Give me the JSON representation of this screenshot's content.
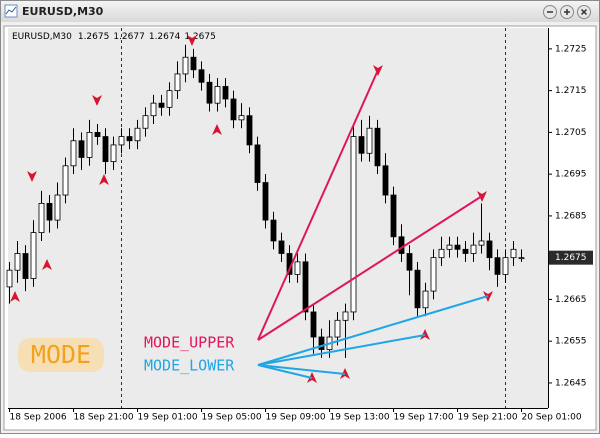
{
  "window": {
    "title": "EURUSD,M30"
  },
  "chart_data": {
    "type": "candlestick",
    "symbol": "EURUSD,M30",
    "categories": [
      "18 Sep 2006",
      null,
      null,
      null,
      null,
      null,
      null,
      null,
      "18 Sep 21:00",
      null,
      null,
      null,
      null,
      null,
      null,
      null,
      "19 Sep 01:00",
      null,
      null,
      null,
      null,
      null,
      null,
      null,
      "19 Sep 05:00",
      null,
      null,
      null,
      null,
      null,
      null,
      null,
      "19 Sep 09:00",
      null,
      null,
      null,
      null,
      null,
      null,
      null,
      "19 Sep 13:00",
      null,
      null,
      null,
      null,
      null,
      null,
      null,
      "19 Sep 17:00",
      null,
      null,
      null,
      null,
      null,
      null,
      null,
      "19 Sep 21:00",
      null,
      null,
      null,
      null,
      null,
      null,
      null,
      "20 Sep 01:00"
    ],
    "open": [
      1.2668,
      1.2672,
      1.2676,
      1.267,
      1.2681,
      1.2688,
      1.2684,
      1.269,
      1.2697,
      1.2703,
      1.2699,
      1.2705,
      1.2704,
      1.2698,
      1.2702,
      1.2704,
      1.2703,
      1.2706,
      1.2709,
      1.2712,
      1.2711,
      1.2715,
      1.2719,
      1.2723,
      1.272,
      1.2717,
      1.2712,
      1.2716,
      1.2713,
      1.2708,
      1.2709,
      1.2702,
      1.2693,
      1.2684,
      1.2679,
      1.2676,
      1.2671,
      1.2674,
      1.2662,
      1.2656,
      1.2653,
      1.2656,
      1.266,
      1.2662,
      1.2704,
      1.27,
      1.2706,
      1.2697,
      1.269,
      1.268,
      1.2676,
      1.2672,
      1.2663,
      1.2667,
      1.2675,
      1.2677,
      1.2678,
      1.2677,
      1.2676,
      1.2678,
      1.2679,
      1.2675,
      1.2671,
      1.2675,
      1.2675
    ],
    "high": [
      1.2674,
      1.2679,
      1.2678,
      1.2684,
      1.2691,
      1.269,
      1.2693,
      1.2699,
      1.2706,
      1.2705,
      1.2708,
      1.2707,
      1.2706,
      1.2704,
      1.2706,
      1.2706,
      1.2708,
      1.2711,
      1.2714,
      1.2714,
      1.2717,
      1.2722,
      1.2726,
      1.2725,
      1.2722,
      1.2719,
      1.2718,
      1.2718,
      1.2715,
      1.2712,
      1.2711,
      1.2704,
      1.2695,
      1.2686,
      1.2681,
      1.2678,
      1.2676,
      1.2676,
      1.2664,
      1.2658,
      1.266,
      1.2662,
      1.2664,
      1.2707,
      1.2708,
      1.2709,
      1.2708,
      1.27,
      1.2692,
      1.2683,
      1.2678,
      1.2674,
      1.2669,
      1.2677,
      1.268,
      1.268,
      1.268,
      1.2679,
      1.2681,
      1.2688,
      1.2681,
      1.2677,
      1.2677,
      1.2679,
      1.2677
    ],
    "low": [
      1.2664,
      1.2669,
      1.2667,
      1.2668,
      1.2679,
      1.2681,
      1.2682,
      1.2688,
      1.2695,
      1.2696,
      1.2697,
      1.2702,
      1.2695,
      1.2696,
      1.27,
      1.2701,
      1.2701,
      1.2704,
      1.2707,
      1.2709,
      1.2709,
      1.2713,
      1.2717,
      1.2718,
      1.2715,
      1.271,
      1.271,
      1.2711,
      1.2706,
      1.2706,
      1.27,
      1.2691,
      1.2682,
      1.2677,
      1.2674,
      1.2669,
      1.2669,
      1.266,
      1.2652,
      1.2651,
      1.2651,
      1.2654,
      1.2651,
      1.266,
      1.2698,
      1.2698,
      1.2695,
      1.2688,
      1.2678,
      1.2674,
      1.2666,
      1.2661,
      1.2661,
      1.2665,
      1.2673,
      1.2675,
      1.2675,
      1.2674,
      1.2674,
      1.2676,
      1.2672,
      1.2668,
      1.2669,
      1.2673,
      1.2674
    ],
    "close": [
      1.2672,
      1.2676,
      1.267,
      1.2681,
      1.2688,
      1.2684,
      1.269,
      1.2697,
      1.2703,
      1.2699,
      1.2705,
      1.2704,
      1.2698,
      1.2702,
      1.2704,
      1.2703,
      1.2706,
      1.2709,
      1.2712,
      1.2711,
      1.2715,
      1.2719,
      1.2723,
      1.272,
      1.2717,
      1.2712,
      1.2716,
      1.2713,
      1.2708,
      1.2709,
      1.2702,
      1.2693,
      1.2684,
      1.2679,
      1.2676,
      1.2671,
      1.2674,
      1.2662,
      1.2656,
      1.2653,
      1.2656,
      1.266,
      1.2662,
      1.2704,
      1.27,
      1.2706,
      1.2697,
      1.269,
      1.268,
      1.2676,
      1.2672,
      1.2663,
      1.2667,
      1.2675,
      1.2677,
      1.2678,
      1.2677,
      1.2676,
      1.2678,
      1.2679,
      1.2675,
      1.2671,
      1.2675,
      1.2677,
      1.2675
    ],
    "ylim": [
      1.2639,
      1.273
    ],
    "yticks": [
      1.2645,
      1.2655,
      1.2665,
      1.2685,
      1.2695,
      1.2705,
      1.2715,
      1.2725
    ],
    "current_price": 1.2675,
    "up_color": "#ffffff",
    "down_color": "#000000",
    "annotations": [
      {
        "text": "MODE_UPPER",
        "color": "#e0155f"
      },
      {
        "text": "MODE_LOWER",
        "color": "#1fa6e6"
      }
    ],
    "badge": "MODE"
  }
}
